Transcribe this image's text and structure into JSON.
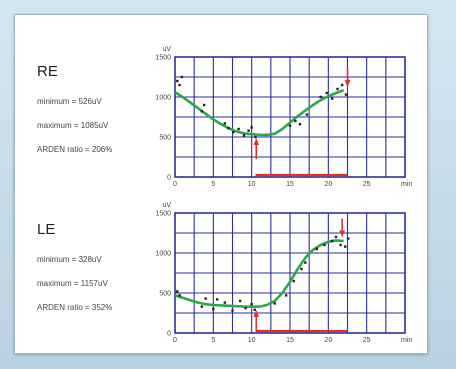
{
  "panels": [
    {
      "eye": "RE",
      "min_text": "minimum = 526uV",
      "max_text": "maximum = 1085uV",
      "ratio_text": "ARDEN ratio = 206%"
    },
    {
      "eye": "LE",
      "min_text": "minimum = 328uV",
      "max_text": "maximum = 1157uV",
      "ratio_text": "ARDEN ratio = 352%"
    }
  ],
  "colors": {
    "grid": "#2a2f9a",
    "fit": "#2aa84a",
    "points": "#222222",
    "arrow": "#e0302a",
    "baseline": "#e0302a"
  },
  "chart_data": [
    {
      "type": "scatter",
      "ylabel": "uV",
      "xlabel": "min",
      "xlim": [
        0,
        30
      ],
      "ylim": [
        0,
        1500
      ],
      "xticks": [
        0,
        5,
        10,
        15,
        20,
        25
      ],
      "yticks": [
        0,
        500,
        1000,
        1500
      ],
      "grid": true,
      "series": [
        {
          "kind": "fit",
          "x": [
            0,
            1,
            2,
            3,
            4,
            5,
            6,
            7,
            8,
            9,
            10,
            11,
            12,
            13,
            14,
            15,
            16,
            17,
            18,
            19,
            20,
            21,
            22
          ],
          "y": [
            1060,
            1000,
            930,
            860,
            790,
            720,
            660,
            610,
            570,
            545,
            535,
            528,
            526,
            540,
            600,
            680,
            760,
            830,
            900,
            960,
            1010,
            1050,
            1085
          ]
        },
        {
          "kind": "points",
          "x": [
            0.3,
            0.6,
            0.9,
            3.5,
            3.8,
            6.5,
            7,
            7.6,
            8.3,
            9,
            9.6,
            10,
            10.5,
            15,
            15.7,
            16.3,
            17.2,
            19,
            19.8,
            20.5,
            21.2,
            21.8,
            22.3,
            22.6
          ],
          "y": [
            1200,
            1150,
            1250,
            820,
            900,
            670,
            610,
            560,
            600,
            520,
            580,
            620,
            500,
            640,
            700,
            660,
            780,
            1000,
            1050,
            980,
            1100,
            1150,
            1030,
            1200
          ]
        }
      ],
      "markers": [
        {
          "x": 10.6,
          "value": 526,
          "label": "minimum"
        },
        {
          "x": 22.5,
          "value": 1085,
          "label": "maximum"
        }
      ]
    },
    {
      "type": "scatter",
      "ylabel": "uV",
      "xlabel": "min",
      "xlim": [
        0,
        30
      ],
      "ylim": [
        0,
        1500
      ],
      "xticks": [
        0,
        5,
        10,
        15,
        20,
        25
      ],
      "yticks": [
        0,
        500,
        1000,
        1500
      ],
      "grid": true,
      "series": [
        {
          "kind": "fit",
          "x": [
            0,
            1,
            2,
            3,
            4,
            5,
            6,
            7,
            8,
            9,
            10,
            11,
            12,
            13,
            14,
            15,
            16,
            17,
            18,
            19,
            20,
            21,
            22
          ],
          "y": [
            470,
            440,
            410,
            380,
            360,
            350,
            345,
            340,
            335,
            330,
            328,
            330,
            350,
            400,
            500,
            640,
            800,
            940,
            1040,
            1100,
            1140,
            1157,
            1150
          ]
        },
        {
          "kind": "points",
          "x": [
            0.3,
            0.6,
            3.5,
            4,
            5,
            5.5,
            6.5,
            7.5,
            8.5,
            9.2,
            10,
            10.4,
            13,
            14.5,
            15.5,
            16.5,
            17,
            18.5,
            19.5,
            20.5,
            21,
            21.6,
            22.2,
            22.6
          ],
          "y": [
            520,
            470,
            330,
            430,
            300,
            420,
            380,
            280,
            400,
            310,
            360,
            290,
            370,
            470,
            650,
            800,
            880,
            1050,
            1100,
            1150,
            1200,
            1100,
            1080,
            1180
          ]
        }
      ],
      "markers": [
        {
          "x": 10.6,
          "value": 328,
          "label": "minimum"
        },
        {
          "x": 21.8,
          "value": 1157,
          "label": "maximum"
        }
      ]
    }
  ]
}
